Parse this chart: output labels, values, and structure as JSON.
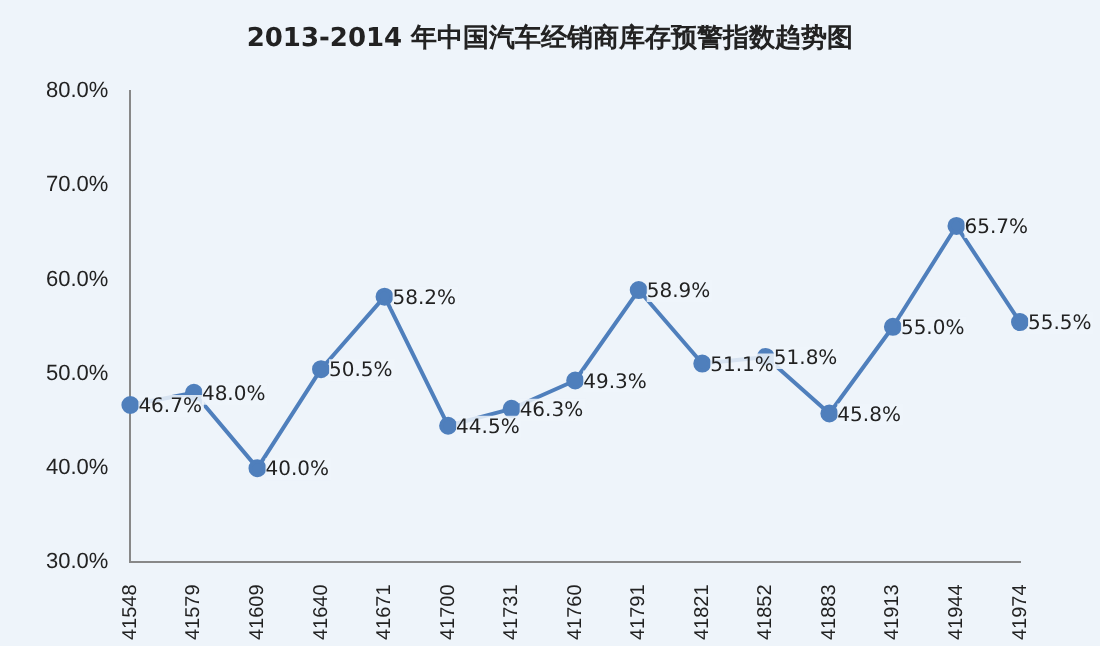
{
  "chart_data": {
    "type": "line",
    "title": "2013-2014 年中国汽车经销商库存预警指数趋势图",
    "categories": [
      "41548",
      "41579",
      "41609",
      "41640",
      "41671",
      "41700",
      "41731",
      "41760",
      "41791",
      "41821",
      "41852",
      "41883",
      "41913",
      "41944",
      "41974"
    ],
    "series": [
      {
        "color": "#4f7fbc",
        "values": [
          46.7,
          48.0,
          40.0,
          50.5,
          58.2,
          44.5,
          46.3,
          49.3,
          58.9,
          51.1,
          51.8,
          45.8,
          55.0,
          65.7,
          55.5
        ],
        "value_labels": [
          "46.7%",
          "48.0%",
          "40.0%",
          "50.5%",
          "58.2%",
          "44.5%",
          "46.3%",
          "49.3%",
          "58.9%",
          "51.1%",
          "51.8%",
          "45.8%",
          "55.0%",
          "65.7%",
          "55.5%"
        ]
      }
    ],
    "ylim": [
      30,
      80
    ],
    "yticks": [
      {
        "value": 30,
        "label": "30.0%"
      },
      {
        "value": 40,
        "label": "40.0%"
      },
      {
        "value": 50,
        "label": "50.0%"
      },
      {
        "value": 60,
        "label": "60.0%"
      },
      {
        "value": 70,
        "label": "70.0%"
      },
      {
        "value": 80,
        "label": "80.0%"
      }
    ],
    "grid": false,
    "legend": false,
    "marker": "circle",
    "line_style": "solid"
  }
}
